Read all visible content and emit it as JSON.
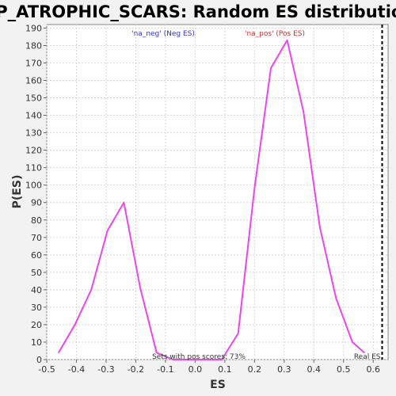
{
  "chart_data": {
    "type": "line",
    "title": "HP_ATROPHIC_SCARS: Random ES distribution",
    "xlabel": "ES",
    "ylabel": "P(ES)",
    "xlim": [
      -0.5,
      0.65
    ],
    "ylim": [
      0,
      192
    ],
    "x_ticks": [
      -0.5,
      -0.4,
      -0.3,
      -0.2,
      -0.1,
      0.0,
      0.1,
      0.2,
      0.3,
      0.4,
      0.5,
      0.6
    ],
    "x_tick_labels": [
      "-0.5",
      "-0.4",
      "-0.3",
      "-0.2",
      "-0.1",
      "0.0",
      "0.1",
      "0.2",
      "0.3",
      "0.4",
      "0.5",
      "0.6"
    ],
    "y_ticks": [
      0,
      10,
      20,
      30,
      40,
      50,
      60,
      70,
      80,
      90,
      100,
      110,
      120,
      130,
      140,
      150,
      160,
      170,
      180,
      190
    ],
    "y_tick_labels": [
      "0",
      "10",
      "20",
      "30",
      "40",
      "50",
      "60",
      "70",
      "80",
      "90",
      "100",
      "110",
      "120",
      "130",
      "140",
      "150",
      "160",
      "170",
      "180",
      "190"
    ],
    "grid": true,
    "series": [
      {
        "color": "#ee44ee",
        "x": [
          -0.46,
          -0.405,
          -0.35,
          -0.295,
          -0.24,
          -0.185,
          -0.13,
          -0.075,
          -0.02,
          0.035,
          0.09,
          0.145,
          0.2,
          0.255,
          0.31,
          0.365,
          0.42,
          0.475,
          0.53,
          0.57
        ],
        "y": [
          4,
          20,
          40,
          74,
          90,
          41,
          4,
          0,
          0,
          0,
          0,
          15,
          98,
          167,
          183,
          142,
          76,
          35,
          10,
          4
        ]
      }
    ],
    "annotations": {
      "neg_label": "'na_neg' (Neg ES)",
      "pos_label": "'na_pos' (Pos ES)",
      "pos_scores": "Sets with pos scores: 73%",
      "real_es_label": "Real ES",
      "real_es_value": 0.63
    },
    "colors": {
      "neg": "#3333cc",
      "pos": "#cc3333",
      "line": "#ee44ee",
      "grid": "#d8d8d8"
    }
  }
}
